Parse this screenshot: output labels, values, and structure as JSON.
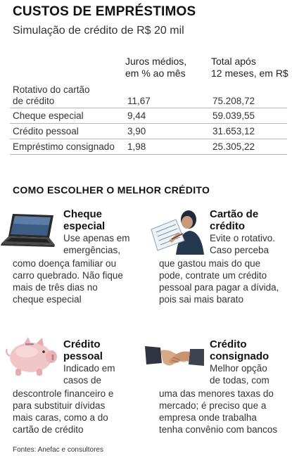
{
  "header": {
    "title": "CUSTOS DE EMPRÉSTIMOS",
    "subtitle": "Simulação de crédito de R$ 20 mil"
  },
  "table": {
    "columns": [
      [
        "Juros médios,",
        "em % ao mês"
      ],
      [
        "Total após",
        "12 meses, em R$"
      ]
    ],
    "rows": [
      {
        "name": [
          "Rotativo do cartão",
          "de crédito"
        ],
        "rate": "11,67",
        "total": "75.208,72"
      },
      {
        "name": [
          "Cheque especial"
        ],
        "rate": "9,44",
        "total": "59.039,55"
      },
      {
        "name": [
          "Crédito pessoal"
        ],
        "rate": "3,90",
        "total": "31.653,12"
      },
      {
        "name": [
          "Empréstimo consignado"
        ],
        "rate": "1,98",
        "total": "25.305,22"
      }
    ]
  },
  "section": {
    "title": "COMO ESCOLHER O MELHOR CRÉDITO"
  },
  "cards": {
    "cheque": {
      "icon": "laptop-icon",
      "title": [
        "Cheque",
        "especial"
      ],
      "text": [
        "Use apenas em",
        "emergências,",
        "como doença familiar ou",
        "carro quebrado. Não fique",
        "mais de três dias no",
        "cheque especial"
      ]
    },
    "cartao": {
      "icon": "person-reading-icon",
      "title": [
        "Cartão de",
        "crédito"
      ],
      "text": [
        "Evite o rotativo.",
        "Caso perceba",
        "que gastou mais do que",
        "pode, contrate um crédito",
        "pessoal para pagar a dívida,",
        "pois sai mais barato"
      ]
    },
    "pessoal": {
      "icon": "piggy-bank-icon",
      "title": [
        "Crédito",
        "pessoal"
      ],
      "text": [
        "Indicado em",
        "casos de",
        "descontrole financeiro e",
        "para substituir dívidas",
        "mais caras, como a do",
        "cartão de crédito"
      ]
    },
    "consignado": {
      "icon": "handshake-icon",
      "title": [
        "Crédito",
        "consignado"
      ],
      "text": [
        "Melhor opção",
        "de todas, com",
        "uma das menores taxas do",
        "mercado; é preciso que a",
        "empresa onde trabalha",
        "tenha convênio com bancos"
      ]
    }
  },
  "footer": {
    "source": "Fontes: Anefac e consultores"
  }
}
